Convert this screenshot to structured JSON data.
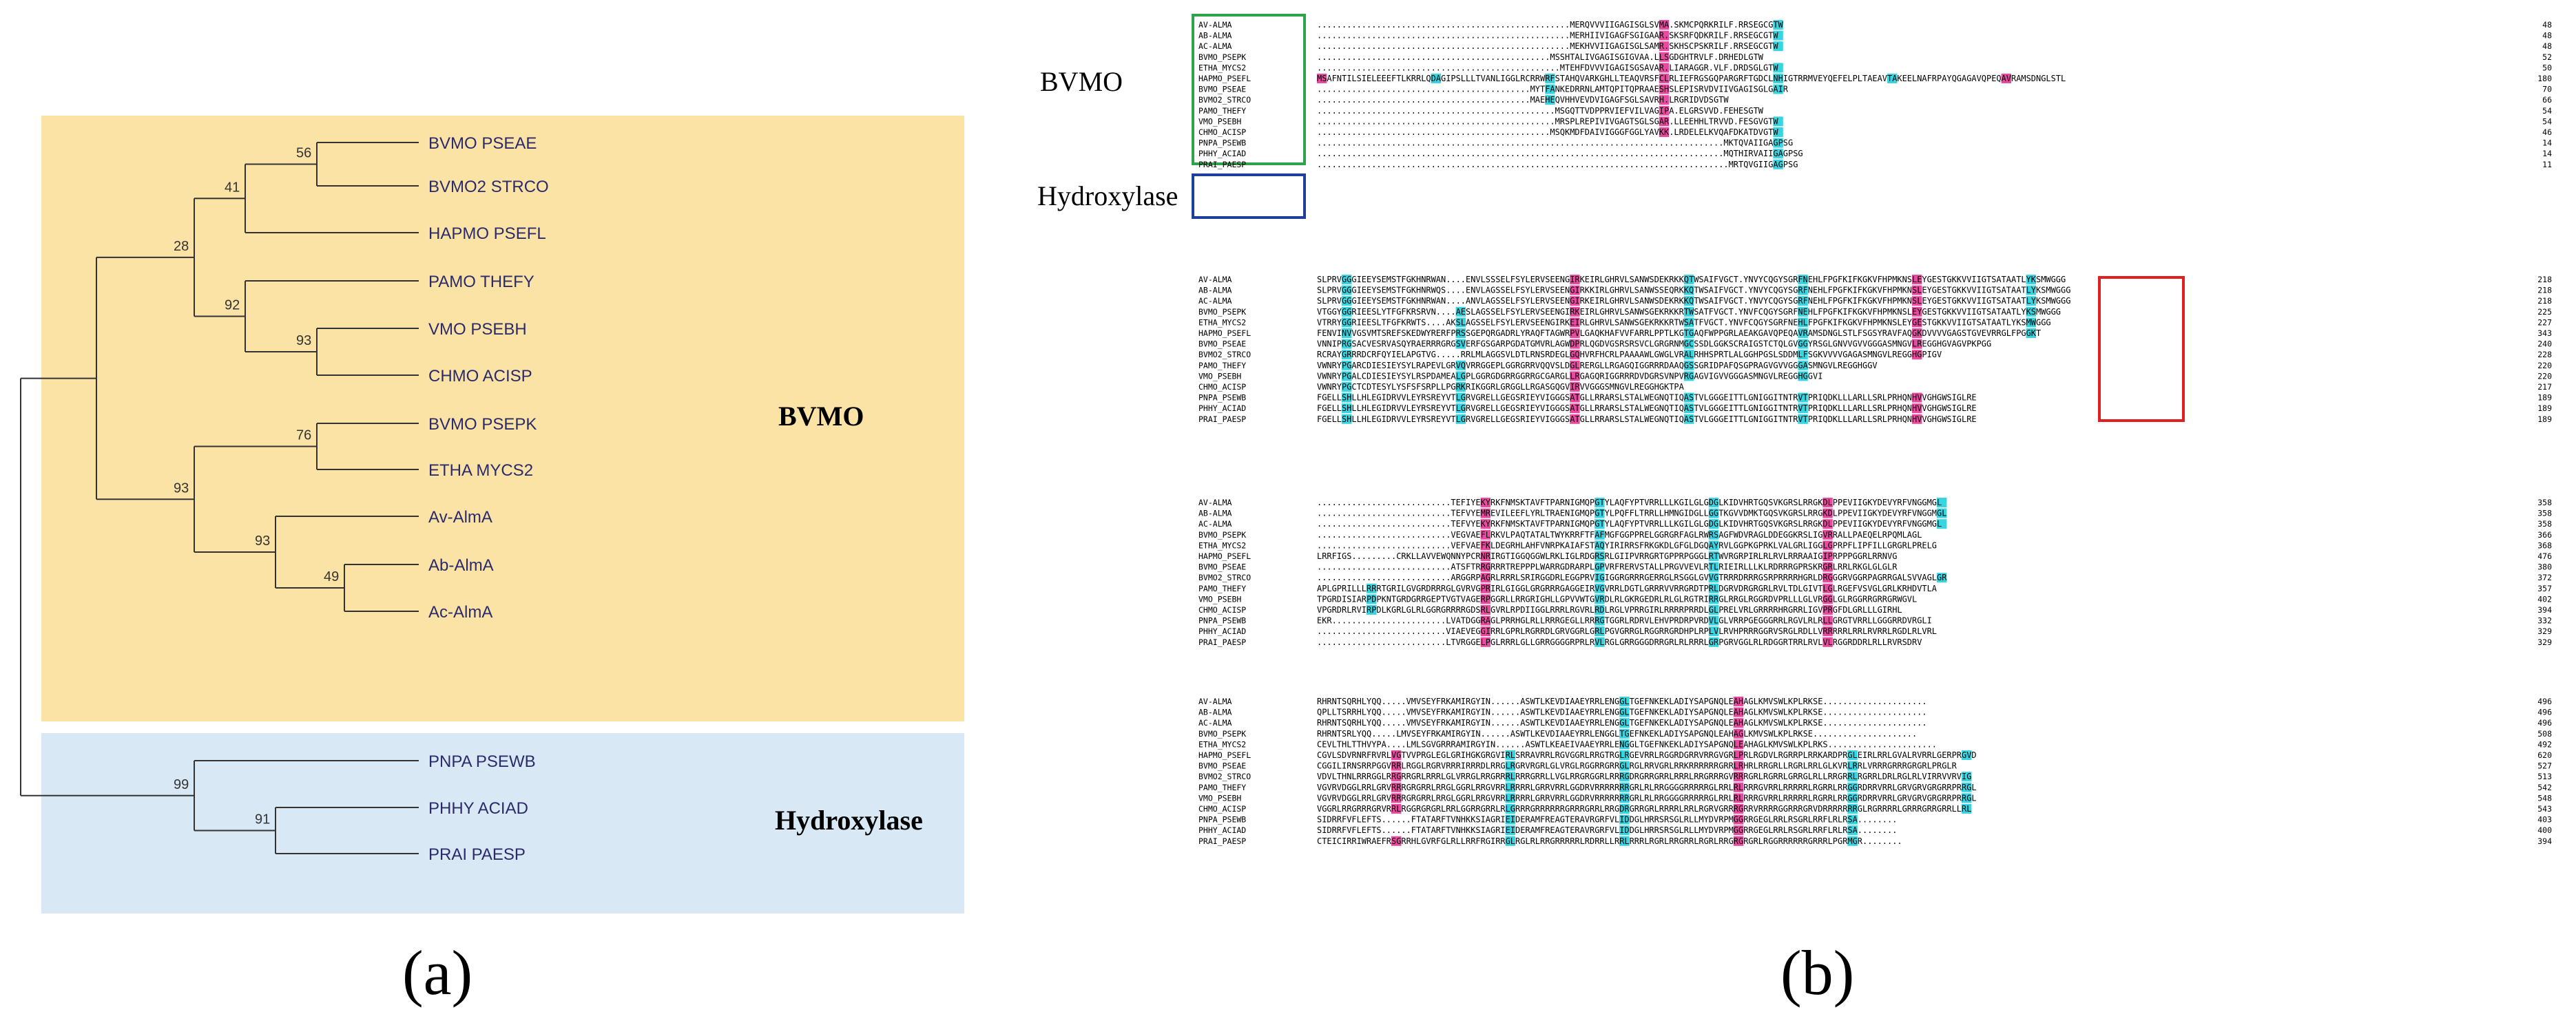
{
  "panel_a": {
    "label": "(a)",
    "groups": [
      {
        "name": "BVMO",
        "color": "#fbe3a6"
      },
      {
        "name": "Hydroxylase",
        "color": "#d8e8f4"
      }
    ],
    "taxa": [
      "BVMO PSEAE",
      "BVMO2 STRCO",
      "HAPMO PSEFL",
      "PAMO THEFY",
      "VMO PSEBH",
      "CHMO ACISP",
      "BVMO PSEPK",
      "ETHA MYCS2",
      "Av-AlmA",
      "Ab-AlmA",
      "Ac-AlmA",
      "PNPA PSEWB",
      "PHHY ACIAD",
      "PRAI PAESP"
    ],
    "bootstrap": [
      "56",
      "41",
      "28",
      "92",
      "93",
      "76",
      "93",
      "93",
      "49",
      "99",
      "91"
    ]
  },
  "panel_b": {
    "label": "(b)",
    "group_labels": [
      "BVMO",
      "Hydroxylase"
    ],
    "sequence_names": [
      "AV-ALMA",
      "AB-ALMA",
      "AC-ALMA",
      "BVMO_PSEPK",
      "ETHA_MYCS2",
      "HAPMO_PSEFL",
      "BVMO_PSEAE",
      "BVMO2_STRCO",
      "PAMO_THEFY",
      "VMO_PSEBH",
      "CHMO_ACISP",
      "PNPA_PSEWB",
      "PHHY_ACIAD",
      "PRAI_PAESP"
    ],
    "blocks": [
      {
        "seqs": [
          "...................................................MERQVVVIIGAGISGLSVMA.SKMCPQRKRILF.RRSEGCGTW",
          "...................................................MERHIIVIGAGFSGIGAAR.SKSRFQDKRILF.RRSEGCGTW",
          "...................................................MEKHVVIIGAGISGLSAMR.SKHSCPSKRILF.RRSEGCGTW",
          "...............................................MSSHTALIVGAGISGIGVAA.LLSGDGHTRVLF.DRHEDLGTW",
          ".................................................MTEHFDVVVIGAGISGSAVAR.LIARAGGR.VLF.DRDSGLGTW",
          "MSAFNTILSIELEEEFTLKRRLQDAGIPSLLLTVANLIGGLRCRRWRFSTAHQVARKGHLLTEAQVRSFCLRLIEFRGSGQPARGRFTGDCLNHIGTRRMVEYQEFELPLTAEAVTAKEELNAFRPAYQGAGAVQPEQAVRAMSDNGLSTL",
          "...........................................MYTFANKEDRRNLAMTQPITQPRAAESHSLEPISRVDVIIVGAGISGLGAIR",
          "...........................................MAEHEQVHHVEVDVIGAGFSGLSAVRH.LRGRIDVDSGTW",
          "................................................MSGQTTVDPPRVIEFVILVAGIPA.ELGRSVVD.FEHESGTW",
          "................................................MRSPLREPIVIVGAGTSGLSGAR.LLEEHHLTRVVD.FESGVGTW",
          "...............................................MSQKMDFDAIVIGGGFGGLYAVKK.LRDELELKVQAFDKATDVGTW",
          "..................................................................................MKTQVAIIGAGPSG",
          "..................................................................................MQTHIRVAIIGAGPSG",
          "...................................................................................MRTQVGIIGAGPSG"
        ],
        "ends": [
          "48",
          "48",
          "48",
          "52",
          "50",
          "180",
          "70",
          "66",
          "54",
          "54",
          "46",
          "14",
          "14",
          "11"
        ]
      },
      {
        "seqs": [
          "SLPRVGGGIEEYSEMSTFGKHNRWAN....ENVLSSSELFSYLERVSEENGIRKEIRLGHRVLSANWSDEKRKKQTWSAIFVGCT.YNVYCQGYSGRFNEHLFPGFKIFKGKVFHPMKNSLEYGESTGKKVVIIGTSATAATLYKSMWGGG",
          "SLPRVGGGIEEYSEMSTFGKHNRWQS....ENVLAGSSELFSYLERVSEENGIRKKIRLGHRVLSANWSSEQRKKQTWSAIFVGCT.YNVYCQGYSGRFNEHLFPGFKIFKGKVFHPMKNSLEYGESTGKKVVIIGTSATAATLYKSMWGGG",
          "SLPRVGGGIEEYSEMSTFGKHNRWAN....ANVLAGSSELFSYLERVSEENGIRKEIRLGHRVLSANWSDEKRKKQTWSAIFVGCT.YNVYCQGYSGRFNEHLFPGFKIFKGKVFHPMKNSLEYGESTGKKVVIIGTSATAATLYKSMWGGG",
          "VTGGYGGRIEESLYTFGFKRSRVN....AESLAGSSELFSYLERVSEENGIRKEIRLGHRVLSANWSGEKRKKRTWSATFVGCT.YNVFCQGYSGRFNEHLFPGFKIFKGKVFHPMKNSLEYGESTGKKVVIIGTSATAATLYKSMWGGG",
          "VTRRYGGRIEESLTFGFKRWTS....AKSLAGSSELFSYLERVSEENGIRKEIRLGHRVLSANWSGEKRKKRTWSATFVGCT.YNVFCQGYSGRFNEHLFPGFKIFKGKVFHPMKNSLEYGESTGKKVVIIGTSATAATLYKSMWGGG",
          "FENVINVVGSVMTSREFSKEDWYRERFPRSSGEPQRGADRLYRAQFTAGWRPVLGAQKHAFVVFARRLPPTLKGTGAQFWPPGRLAEAKGAVQPEQAVRAMSDNGLSTLFSGSYRAVFAQGKDVVVVGAGSTGVEVRRGLFPGGKT",
          "VNNIPRGSACVESRVASQYRAERRRGRGSVERFGSGARPGDATGMVRLAGWDPRLQGDVGSRSRSVCLGRGRNMGCSSDLGGKSCRAIGSTCTQLGVGGYRSGLGNVVGVVGGGASMNGVLREGGHGVAGVPKPGG",
          "RCRAYGRRRDCRFQYIELAPGTVG.....RRLMLAGGSVLDTLRNSRDEGLGQHVRFHCRLPAAAAWLGWGLVRALRHHSPRTLALGGHPGSLSDDMLFSGKVVVVGAGASMNGVLREGGHGPIGV",
          "VWNRYPGARCDIESIEYSYLRAPEVLGRVQVRRGGEPLGGRGRRVQQVSLDGLRERGLLRGAGQIGGRRRDAAQGSSGRIDPAFQSGPRAGVGVVGGGASMNGVLREGGHGGV",
          "VWNRYPGALCDIESIEYSYLRSPDAMEALGPLGGRGDGRRGGRRGCGARGLLRGAGQRIGGRRRDVDGRSVNPVRGAGVIGVVGGGASMNGVLREGGHGGVI",
          "VWNRYPGCTCDTESYLYSFSFSRPLLPGRKRIKGGRLGRGGLLRGASGQGVIRVVGGGSMNGVLREGGHGKTPA",
          "FGELLSHLLHLEGIDRVVLEYRSREYVTLGRVGRELLGEGSRIEYVIGGGSATGLLRRARSLSTALWEGNQTIQASTVLGGGEITTLGNIGGITNTRVTPRIQDKLLLARLLSRLPRHQNHVVGHGWSIGLRE",
          "FGELLSHLLHLEGIDRVVLEYRSREYVTLGRVGRELLGEGSRIEYVIGGGSATGLLRRARSLSTALWEGNQTIQASTVLGGGEITTLGNIGGITNTRVTPRIQDKLLLARLLSRLPRHQNHVVGHGWSIGLRE",
          "FGELLSHLLHLEGIDRVVLEYRSREYVTLGRVGRELLGEGSRIEYVIGGGSATGLLRRARSLSTALWEGNQTIQASTVLGGGEITTLGNIGGITNTRVTPRIQDKLLLARLLSRLPRHQNHVVGHGWSIGLRE"
        ],
        "ends": [
          "218",
          "218",
          "218",
          "225",
          "227",
          "343",
          "240",
          "228",
          "220",
          "220",
          "217",
          "189",
          "189",
          "189"
        ]
      },
      {
        "seqs": [
          "...........................TEFIYEKYRKFNMSKTAVFTPARNIGMQPGTYLAQFYPTVRRLLLKGILGLGDGLKIDVHRTGQSVKGRSLRRGKDLPPEVIIGKYDEVYRFVNGGMGL",
          "...........................TEFVYEMREVILEEFLYRLTRAENIGMQPGTYLPQFFLTRRLLHMNGIDGLLGGTKGVVDMKTGQSVKGRSLRRGKDLPPEVIIGKYDEVYRFVNGGMGL",
          "...........................TEFVYEKYRKFNMSKTAVFTPARNIGMQPGTYLAQFYPTVRRLLLKGILGLGDGLKIDVHRTGQSVKGRSLRRGKDLPPEVIIGKYDEVYRFVNGGMGL",
          "...........................VEGVAEFLRKVLPAQTATALTWYKRRFTFAFMGFGGPPRELGGRGRFAGLRWRSAGFWDVRAGLDDEGGKRSLIGVRRALLPAEQELRPQMLAGL",
          "...........................VEFVAEFKLDEGRHLAHFVNRPKAIAFSTAQYIRIRRSFRKGKDLGFGLDGQAYRVLGGPKGPRKLVALGRLIGGLGPRPFLIPFILLGRGRLPRELG",
          "LRRFIGS.........CRKLLAVVEWQNNYPCRNRIRGTIGGQGGWLRKLIGLRDGRSRLGIIPVRRGRTGPPRPGGGLRTWVRGRPIRLRLRVLRRRAAIGIPRPPPGGRLRRNVG",
          "...........................ATSFTRRGRRRTREPPPLWARRGDRARPLGPVRFRERVSTALLPRGVVEVLRTLRIEIRLLLKLRDRRRGPRSKRGRLRRLRKGLGLGLR",
          "...........................ARGGRPAGRLRRRLSRIRGGDRLEGGPRVIGIGGRGRRRGERRGLRSGGLGVVGTRRRDRRRGSRPRRRRHGRLDRGGGRVGGRPAGRRGALSVVAGLGR",
          "APLGPRILLLRRRTGRILGVGRDRRRGLGVRVGPRIRLGIGGLGRGRRRGAGGEIRVGVRRLDGTLGRRRVVRRGRDTPRLDGRVDRGRGRLRVLTDLGIVTLGLRGEFVSVGLGRLKRHDVTLA",
          "TPGRDISIARPDPKNTGRDGRRGEPTVGTVAGERPGGRLLRRGRIGHLLGPVVWTGVRDLRLGKRGEDRLRLGLRGTRIRRGLRRGLRGGRDVPRLLLGLVRGGLGLRGGRRGRRGRWGVL",
          "VPGRDRLRVIRPDLKGRLGLRLGGRGRRRRGDSRLGVRLRPDIIGGLRRRLRGVRLRDLRGLVPRRGIRLRRRRPRRDLGLPRELVRLGRRRRHRGRRLIGVPRGFDLGRLLLGIRHL",
          "EKR.......................LVATDGGRAGLPRRHGLRLLRRRGEGLLRRRGTGGRLRDRVLEHVPRDRPVRDVLGLVRRPGEGGGRRLRGVLRLRLLGRGTVRRLLGGGRRDVRGLI",
          "..........................VIAEVEGGIRRLGPRLRGRRDLGRVGGRLGRLPGVGRRGLRGGRRGRDHPLRPLVLRVHPRRRGGRVSRGLRDLLVRRRRRLRRLRVRRLRGDLRLVRL",
          "..........................LTVRGGELPGLRRRLGLLGRRGGGGRPRLRVLRGLGRRGGGDRRGRLRLRRRLGRPGRVGGLRLRDGGRTRRLRVLVLRGGRDDRLRLLRVRSDRV"
        ],
        "ends": [
          "358",
          "358",
          "358",
          "366",
          "368",
          "476",
          "380",
          "372",
          "357",
          "402",
          "394",
          "332",
          "329",
          "329"
        ]
      },
      {
        "seqs": [
          "RHRNTSQRHLYQQ.....VMVSEYFRKAMIRGYIN......ASWTLKEVDIAAEYRRLENGGLTGEFNKEKLADIYSAPGNQLEAHAGLKMVSWLKPLRKSE.....................",
          "QPLLTSRRHLYQQ.....VMVSEYFRKAMIRGYIN......ASWTLKEVDIAAEYRRLENGGLTGEFNKEKLADIYSAPGNQLEAHAGLKMVSWLKPLRKSE.....................",
          "RHRNTSQRHLYQQ.....VMVSEYFRKAMIRGYIN......ASWTLKEVDIAAEYRRLENGGLTGEFNKEKLADIYSAPGNQLEAHAGLKMVSWLKPLRKSE.....................",
          "RHRNTSRLYQQ.....LMVSEYFRKAMIRGYIN......ASWTLKEVDIAAEYRRLENGGLTGEFNKEKLADIYSAPGNQLEAHAGLKMVSWLKPLRKSE.....................",
          "CEVLTHLTTHVYPA....LMLSGVGRRRAMIRGYIN......ASWTLKEAEIVAAEYRRLENGGLTGEFNKEKLADIYSAPGNQLEAHAGLKMVSWLKPLRKS......................",
          "CGVLSDVRNRFRVRLVGTVVPRGLEGLGRIHGKGRGVIRLSRRAVRRLRGVGGRLRRGTRGLRGEVRRLRGGRDGRRVRRGVGRLPRLRGDVLRGRRPLRRKARDPRGLEIRLRRLGVALRVRRLGERPRGVD",
          "CGGILIRNSRRPGGVRRLRGGLRGRVRRRIRRRDLRRGLRGRVRGRLGLVRGLRGGRRGRRGLRGLRRVGRLRRKRRRRRRGRRLRHRLRRGRLLRGRLRRLGLKVRLRRLVRRRGRRRGRGRLPRGLR",
          "VDVLTHNLRRRGGLRRGRRGRLRRRLGLVRRGLRRGRRRLRRRGRRLLVGLRRGRGGRLRRRGDRGRRGRRLRRRLRRGRRRGVRRRGRLRGRRLGRRGLRLLRRGRRLRGRRLDRLRGLRLVIRRVVRVIG",
          "VGVRVDGGLRRLGRVRRRGRGRRLRRGLGGRLRRGVRRLRRRRLGRRVRRLGGDRVRRRRRRRGRLRLRRGGGGRRRRRGLRRLRLRRRGVRRLRRRRRLRGRRLRRGGRDRRVRRLGRVGRVGRGRRPRRGL",
          "VGVRVDGGLRRLGRVRRRGRGRRLRRGLGGRLRRGVRRLRRRRLGRRVRRLGGDRVRRRRRRRGRLRLRRGGGGRRRRRGLRRLRLRRRGVRRLRRRRRLRGRRLRRGGRDRRVRRLGRVGRVGRGRRPRRGL",
          "VGGRLRRGRRRGRVRRLRGGRGRGRLRRLGGRRGRRLRLGRRRGRRRRRRGRRRGRRLRRGDRGRRGRLRRRRLRRLRGRVGRRRGRRVRRRRGGRRRGRVDRRRRRRRGLRGRRRRLGRRRGRRGRRLLRL",
          "SIDRRFVFLEFTS......FTATARFTVNHKKSIAGRIEIDERAMFREAGTERAVRGRFVLIDDGLHRRSRSGLRLLMYDVRPMGGRRGEGLRRLRSGRLRRFLRLRSA........",
          "SIDRRFVFLEFTS......FTATARFTVNHKKSIAGRIEIDERAMFREAGTERAVRGRFVLIDDGLHRRSRSGLRLLMYDVRPMGGRRGEGLRRLRSGRLRRFLRLRSA........",
          "CTEICIRRIWRAEFRSGRRHLGVRFGLRLLRRFRGIRRGLRGLRLRRGRRRRRLRDRRLLRRLRRRLRGRLRRGRRLRGRLRRGRGRGRLRGGRRRRRRGRRRLPGRMGR........"
        ],
        "ends": [
          "496",
          "496",
          "496",
          "508",
          "492",
          "620",
          "527",
          "513",
          "542",
          "548",
          "543",
          "403",
          "400",
          "394"
        ]
      }
    ]
  }
}
